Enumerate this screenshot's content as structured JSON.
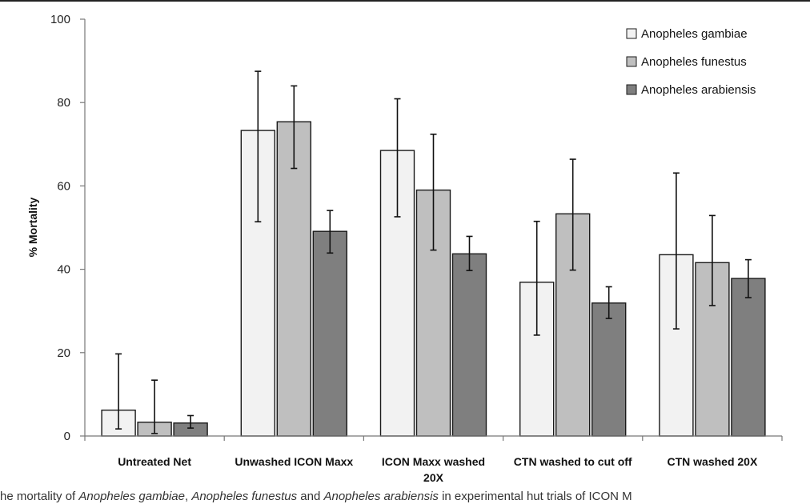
{
  "chart_data": {
    "type": "bar",
    "title": "",
    "xlabel": "",
    "ylabel": "% Mortality",
    "ylim": [
      0,
      100
    ],
    "yticks": [
      0,
      20,
      40,
      60,
      80,
      100
    ],
    "grid": false,
    "legend_position": "top-right",
    "categories": [
      [
        "Untreated Net"
      ],
      [
        "Unwashed ICON Maxx"
      ],
      [
        "ICON Maxx washed",
        "20X"
      ],
      [
        "CTN washed to cut off"
      ],
      [
        "CTN washed 20X"
      ]
    ],
    "series": [
      {
        "name": "Anopheles gambiae",
        "color": "#f2f2f2",
        "values": [
          6.2,
          73.3,
          68.5,
          36.9,
          43.5
        ],
        "err_low": [
          1.7,
          51.4,
          52.6,
          24.2,
          25.7
        ],
        "err_high": [
          19.7,
          87.5,
          80.9,
          51.5,
          63.1
        ]
      },
      {
        "name": "Anopheles funestus",
        "color": "#bfbfbf",
        "values": [
          3.3,
          75.4,
          59.0,
          53.3,
          41.6
        ],
        "err_low": [
          0.6,
          64.2,
          44.6,
          39.8,
          31.3
        ],
        "err_high": [
          13.4,
          84.0,
          72.4,
          66.4,
          52.9
        ]
      },
      {
        "name": "Anopheles arabiensis",
        "color": "#7f7f7f",
        "values": [
          3.1,
          49.1,
          43.7,
          31.9,
          37.8
        ],
        "err_low": [
          1.9,
          43.9,
          39.7,
          28.2,
          33.2
        ],
        "err_high": [
          4.9,
          54.1,
          47.9,
          35.8,
          42.3
        ]
      }
    ]
  },
  "caption": {
    "part1": "he mortality of ",
    "sp1": "Anopheles gambiae",
    "sep1": ", ",
    "sp2": "Anopheles funestus",
    "sep2": " and ",
    "sp3": "Anopheles arabiensis",
    "part2": " in experimental hut trials of ICON M"
  }
}
